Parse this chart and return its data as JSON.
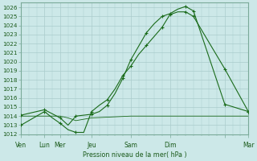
{
  "background_color": "#cce8e8",
  "grid_color": "#aacccc",
  "line_color": "#1a6b1a",
  "spine_color": "#7aaa99",
  "tick_color": "#7aaa99",
  "text_color": "#1a5a1a",
  "xlabel": "Pression niveau de la mer( hPa )",
  "ylim": [
    1012,
    1026.5
  ],
  "yticks": [
    1012,
    1013,
    1014,
    1015,
    1016,
    1017,
    1018,
    1019,
    1020,
    1021,
    1022,
    1023,
    1024,
    1025,
    1026
  ],
  "xlim": [
    0,
    29
  ],
  "day_positions": [
    0,
    3,
    5,
    9,
    14,
    19,
    26,
    29
  ],
  "day_labels": [
    "Ven",
    "Lun",
    "Mer",
    "Jeu",
    "Sam",
    "Dim",
    "",
    "Mar"
  ],
  "series1_x": [
    0,
    1,
    3,
    5,
    6,
    7,
    8,
    9,
    10,
    11,
    12,
    13,
    14,
    15,
    16,
    17,
    18,
    19,
    20,
    21,
    22,
    26,
    29
  ],
  "series1_y": [
    1014.1,
    1014.3,
    1014.7,
    1013.8,
    1013.0,
    1014.0,
    1014.1,
    1014.2,
    1014.5,
    1015.2,
    1016.5,
    1018.2,
    1020.2,
    1021.7,
    1023.2,
    1024.2,
    1025.0,
    1025.3,
    1025.8,
    1026.1,
    1025.6,
    1015.3,
    1014.5
  ],
  "series1_mx": [
    0,
    3,
    5,
    7,
    9,
    11,
    13,
    14,
    16,
    18,
    19,
    21,
    22,
    26,
    29
  ],
  "series1_my": [
    1014.1,
    1014.7,
    1013.8,
    1014.0,
    1014.2,
    1015.2,
    1018.2,
    1020.2,
    1023.2,
    1025.0,
    1025.3,
    1026.1,
    1025.6,
    1015.3,
    1014.5
  ],
  "series2_x": [
    0,
    1,
    3,
    4,
    5,
    6,
    7,
    8,
    9,
    10,
    11,
    12,
    13,
    14,
    15,
    16,
    17,
    18,
    19,
    20,
    21,
    22,
    26,
    29
  ],
  "series2_y": [
    1013.0,
    1013.5,
    1014.5,
    1013.8,
    1013.2,
    1012.5,
    1012.2,
    1012.2,
    1014.5,
    1015.2,
    1015.8,
    1017.0,
    1018.5,
    1019.5,
    1020.8,
    1021.8,
    1022.8,
    1023.8,
    1025.2,
    1025.5,
    1025.5,
    1025.0,
    1019.2,
    1014.5
  ],
  "series2_mx": [
    0,
    3,
    5,
    7,
    9,
    11,
    13,
    14,
    16,
    18,
    19,
    21,
    22,
    26,
    29
  ],
  "series2_my": [
    1013.0,
    1014.5,
    1013.2,
    1012.2,
    1014.5,
    1015.8,
    1018.5,
    1019.5,
    1021.8,
    1023.8,
    1025.2,
    1025.5,
    1025.0,
    1019.2,
    1014.5
  ],
  "series3_x": [
    0,
    3,
    5,
    6,
    7,
    9,
    14,
    19,
    22,
    26,
    29
  ],
  "series3_y": [
    1014.0,
    1014.0,
    1014.0,
    1013.8,
    1013.5,
    1013.8,
    1014.0,
    1014.0,
    1014.0,
    1014.0,
    1014.0
  ]
}
